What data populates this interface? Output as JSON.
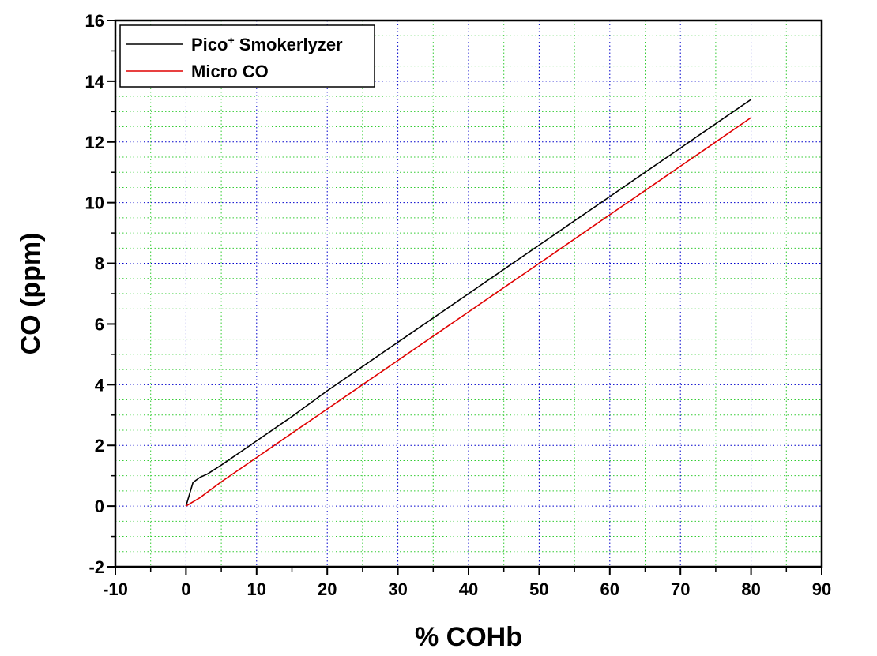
{
  "chart_data": {
    "type": "line",
    "xlabel": "% COHb",
    "ylabel": "CO (ppm)",
    "xlim": [
      -10,
      90
    ],
    "ylim": [
      -2,
      16
    ],
    "x_ticks": [
      -10,
      0,
      10,
      20,
      30,
      40,
      50,
      60,
      70,
      80,
      90
    ],
    "y_ticks": [
      -2,
      0,
      2,
      4,
      6,
      8,
      10,
      12,
      14,
      16
    ],
    "grid": true,
    "legend_position": "top-left",
    "series": [
      {
        "name": "Pico",
        "name_sup": "+",
        "name_rest": " Smokerlyzer",
        "color": "#000000",
        "x": [
          0,
          1,
          2,
          3,
          5,
          10,
          15,
          20,
          25,
          30,
          35,
          40,
          45,
          50,
          55,
          60,
          65,
          70,
          75,
          80
        ],
        "y": [
          0,
          0.78,
          0.95,
          1.05,
          1.35,
          2.15,
          2.95,
          3.8,
          4.6,
          5.4,
          6.2,
          7.0,
          7.8,
          8.6,
          9.4,
          10.2,
          11.0,
          11.8,
          12.6,
          13.4
        ]
      },
      {
        "name": "Micro CO",
        "color": "#e00000",
        "x": [
          0,
          2,
          5,
          10,
          15,
          20,
          25,
          30,
          35,
          40,
          45,
          50,
          55,
          60,
          65,
          70,
          75,
          80
        ],
        "y": [
          0,
          0.28,
          0.8,
          1.6,
          2.4,
          3.2,
          4.0,
          4.8,
          5.6,
          6.4,
          7.2,
          8.0,
          8.8,
          9.6,
          10.4,
          11.2,
          12.0,
          12.8
        ]
      }
    ]
  }
}
